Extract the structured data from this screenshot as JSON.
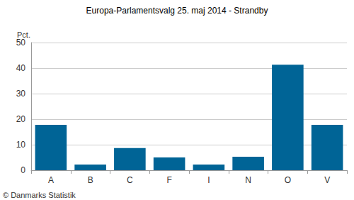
{
  "chart_data": {
    "type": "bar",
    "title": "Europa-Parlamentsvalg 25. maj 2014 - Strandby",
    "ylabel": "Pct.",
    "annotations": [
      "© Danmarks Statistik"
    ],
    "categories": [
      "A",
      "B",
      "C",
      "F",
      "I",
      "N",
      "O",
      "V"
    ],
    "values": [
      17.8,
      2.2,
      8.7,
      5.0,
      2.2,
      5.3,
      41.3,
      17.8
    ],
    "color": "#006496",
    "ylim": [
      0,
      50
    ],
    "yticks": [
      0,
      10,
      20,
      30,
      40,
      50
    ],
    "grid": true
  }
}
